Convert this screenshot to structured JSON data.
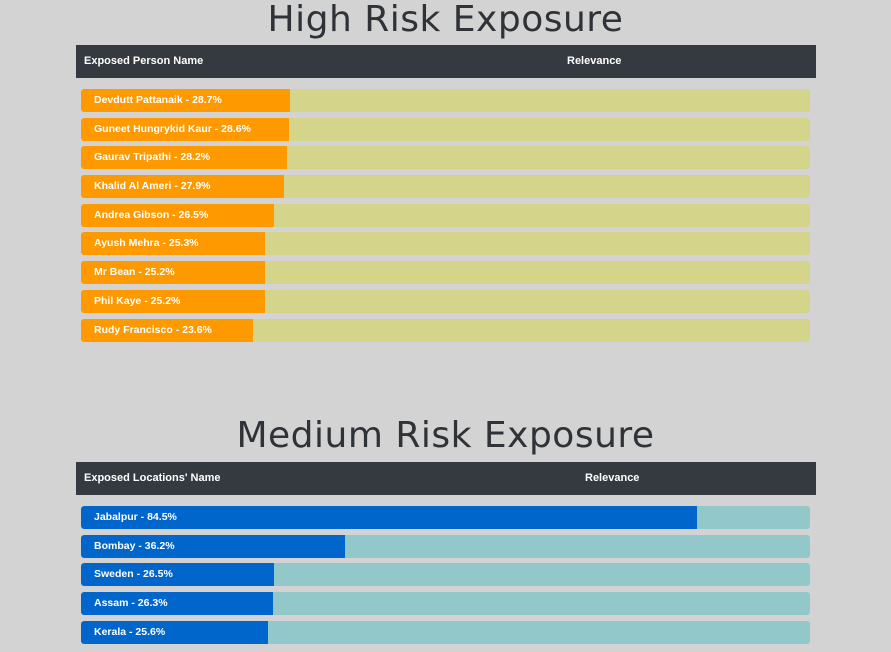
{
  "colors": {
    "high_fill": "#ff9900",
    "high_track": "#d4d48a",
    "medium_fill": "#0066cc",
    "medium_track": "#93c8ca",
    "header_bg": "#343a40"
  },
  "high": {
    "title": "High Risk Exposure",
    "col_name": "Exposed Person Name",
    "col_relevance": "Relevance",
    "rows": [
      {
        "label": "Devdutt Pattanaik - 28.7%",
        "value": 28.7
      },
      {
        "label": "Guneet Hungrykid Kaur - 28.6%",
        "value": 28.6
      },
      {
        "label": "Gaurav Tripathi - 28.2%",
        "value": 28.2
      },
      {
        "label": "Khalid Al Ameri - 27.9%",
        "value": 27.9
      },
      {
        "label": "Andrea Gibson - 26.5%",
        "value": 26.5
      },
      {
        "label": "Ayush Mehra - 25.3%",
        "value": 25.3
      },
      {
        "label": "Mr Bean - 25.2%",
        "value": 25.2
      },
      {
        "label": "Phil Kaye - 25.2%",
        "value": 25.2
      },
      {
        "label": "Rudy Francisco - 23.6%",
        "value": 23.6
      }
    ]
  },
  "medium": {
    "title": "Medium Risk Exposure",
    "col_name": "Exposed Locations' Name",
    "col_relevance": "Relevance",
    "rows": [
      {
        "label": "Jabalpur - 84.5%",
        "value": 84.5
      },
      {
        "label": "Bombay - 36.2%",
        "value": 36.2
      },
      {
        "label": "Sweden - 26.5%",
        "value": 26.5
      },
      {
        "label": "Assam - 26.3%",
        "value": 26.3
      },
      {
        "label": "Kerala - 25.6%",
        "value": 25.6
      }
    ]
  }
}
